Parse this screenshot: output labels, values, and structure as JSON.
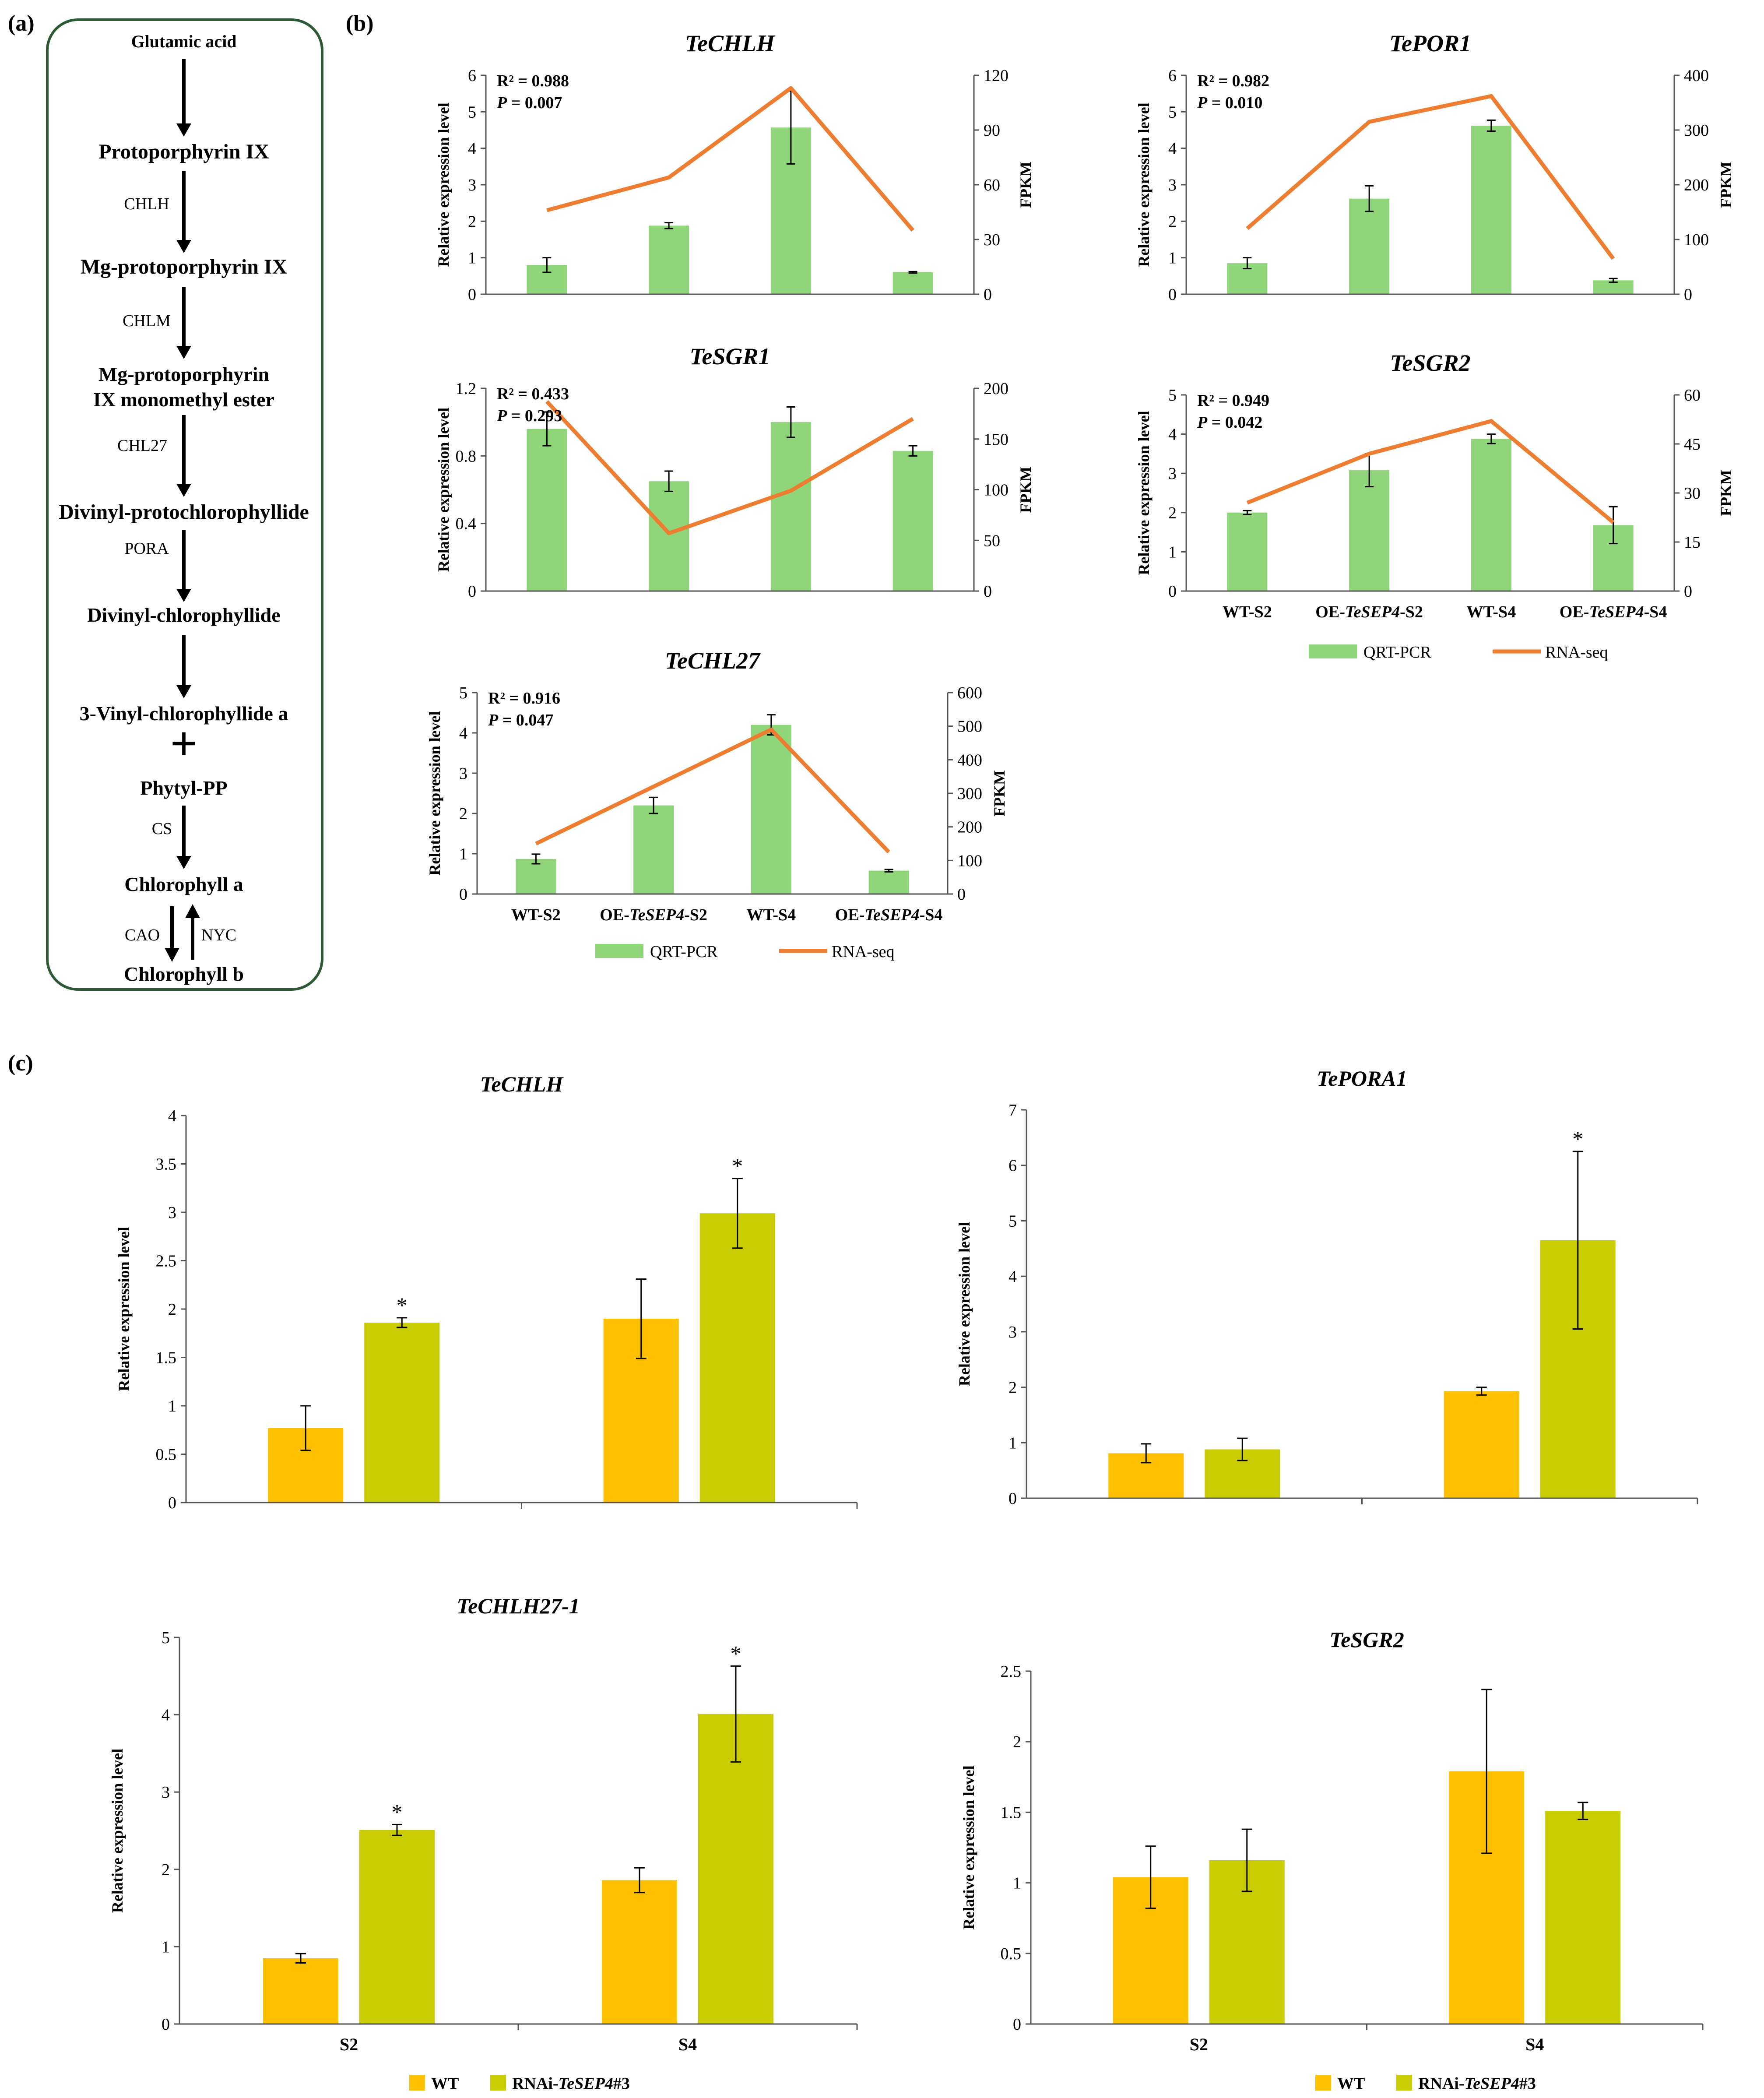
{
  "panel_labels": {
    "a": "(a)",
    "b": "(b)",
    "c": "(c)"
  },
  "pathway": {
    "steps": [
      "Glutamic acid",
      "Protoporphyrin IX",
      "Mg-protoporphyrin IX",
      "Mg-protoporphyrin",
      "IX monomethyl ester",
      "Divinyl-protochlorophyllide",
      "Divinyl-chlorophyllide",
      "3-Vinyl-chlorophyllide a",
      "Phytyl-PP",
      "Chlorophyll a",
      "Chlorophyll b"
    ],
    "enzymes": [
      "CHLH",
      "CHLM",
      "CHL27",
      "PORA",
      "CS",
      "CAO",
      "NYC"
    ],
    "plus_sign": "+"
  },
  "legend_b": {
    "qrt": "QRT-PCR",
    "rnaseq": "RNA-seq"
  },
  "legend_c": {
    "wt": "WT",
    "rnai_prefix": "RNAi-",
    "rnai_gene": "TeSEP4",
    "rnai_suffix": "#3"
  },
  "axis_labels": {
    "relative": "Relative expression level",
    "fpkm": "FPKM"
  },
  "colors": {
    "qrt_bar": "#8fd67a",
    "rnaseq_line": "#ed7d31",
    "wt_bar": "#ffc000",
    "rnai_bar": "#c9cc00",
    "pathway_border": "#2d5a36"
  },
  "chart_data": [
    {
      "id": "b-chlh",
      "type": "bar+line",
      "title": "TeCHLH",
      "categories": [
        "WT-S2",
        "OE-TeSEP4-S2",
        "WT-S4",
        "OE-TeSEP4-S4"
      ],
      "series": [
        {
          "name": "QRT-PCR",
          "axis": "left",
          "values": [
            0.8,
            1.88,
            4.57,
            0.6
          ],
          "errors": [
            0.2,
            0.08,
            1.0,
            0.02
          ]
        },
        {
          "name": "RNA-seq",
          "axis": "right",
          "values": [
            46,
            64,
            113,
            35
          ]
        }
      ],
      "ylim": [
        0,
        6
      ],
      "yticks": [
        0,
        1,
        2,
        3,
        4,
        5,
        6
      ],
      "y2lim": [
        0,
        120
      ],
      "y2ticks": [
        0,
        30,
        60,
        90,
        120
      ],
      "ylabel": "Relative expression level",
      "y2label": "FPKM",
      "stats": [
        "R² = 0.988",
        "P = 0.007"
      ],
      "xticklabels_visible": false
    },
    {
      "id": "b-por1",
      "type": "bar+line",
      "title": "TePOR1",
      "categories": [
        "WT-S2",
        "OE-TeSEP4-S2",
        "WT-S4",
        "OE-TeSEP4-S4"
      ],
      "series": [
        {
          "name": "QRT-PCR",
          "axis": "left",
          "values": [
            0.85,
            2.62,
            4.62,
            0.38
          ],
          "errors": [
            0.15,
            0.35,
            0.15,
            0.05
          ]
        },
        {
          "name": "RNA-seq",
          "axis": "right",
          "values": [
            120,
            315,
            362,
            65
          ]
        }
      ],
      "ylim": [
        0,
        6
      ],
      "yticks": [
        0,
        1,
        2,
        3,
        4,
        5,
        6
      ],
      "y2lim": [
        0,
        400
      ],
      "y2ticks": [
        0,
        100,
        200,
        300,
        400
      ],
      "ylabel": "Relative expression level",
      "y2label": "FPKM",
      "stats": [
        "R² = 0.982",
        "P = 0.010"
      ],
      "xticklabels_visible": false
    },
    {
      "id": "b-sgr1",
      "type": "bar+line",
      "title": "TeSGR1",
      "categories": [
        "WT-S2",
        "OE-TeSEP4-S2",
        "WT-S4",
        "OE-TeSEP4-S4"
      ],
      "series": [
        {
          "name": "QRT-PCR",
          "axis": "left",
          "values": [
            0.96,
            0.65,
            1.0,
            0.83
          ],
          "errors": [
            0.1,
            0.06,
            0.09,
            0.03
          ]
        },
        {
          "name": "RNA-seq",
          "axis": "right",
          "values": [
            187,
            57,
            99,
            170
          ]
        }
      ],
      "ylim": [
        0,
        1.2
      ],
      "yticks": [
        0,
        0.4,
        0.8,
        1.2
      ],
      "y2lim": [
        0,
        200
      ],
      "y2ticks": [
        0,
        50,
        100,
        150,
        200
      ],
      "ylabel": "Relative expression level",
      "y2label": "FPKM",
      "stats": [
        "R² = 0.433",
        "P = 0.293"
      ],
      "xticklabels_visible": false
    },
    {
      "id": "b-sgr2",
      "type": "bar+line",
      "title": "TeSGR2",
      "categories": [
        "WT-S2",
        "OE-TeSEP4-S2",
        "WT-S4",
        "OE-TeSEP4-S4"
      ],
      "series": [
        {
          "name": "QRT-PCR",
          "axis": "left",
          "values": [
            2.0,
            3.08,
            3.88,
            1.68
          ],
          "errors": [
            0.05,
            0.42,
            0.12,
            0.47
          ]
        },
        {
          "name": "RNA-seq",
          "axis": "right",
          "values": [
            27,
            42,
            52,
            21
          ]
        }
      ],
      "ylim": [
        0,
        5
      ],
      "yticks": [
        0,
        1,
        2,
        3,
        4,
        5
      ],
      "y2lim": [
        0,
        60
      ],
      "y2ticks": [
        0,
        15,
        30,
        45,
        60
      ],
      "ylabel": "Relative expression level",
      "y2label": "FPKM",
      "stats": [
        "R² = 0.949",
        "P = 0.042"
      ],
      "xticklabels_visible": true
    },
    {
      "id": "b-chl27",
      "type": "bar+line",
      "title": "TeCHL27",
      "categories": [
        "WT-S2",
        "OE-TeSEP4-S2",
        "WT-S4",
        "OE-TeSEP4-S4"
      ],
      "series": [
        {
          "name": "QRT-PCR",
          "axis": "left",
          "values": [
            0.87,
            2.2,
            4.2,
            0.58
          ],
          "errors": [
            0.12,
            0.2,
            0.25,
            0.03
          ]
        },
        {
          "name": "RNA-seq",
          "axis": "right",
          "values": [
            150,
            320,
            490,
            125
          ]
        }
      ],
      "ylim": [
        0,
        5
      ],
      "yticks": [
        0,
        1,
        2,
        3,
        4,
        5
      ],
      "y2lim": [
        0,
        600
      ],
      "y2ticks": [
        0,
        100,
        200,
        300,
        400,
        500,
        600
      ],
      "ylabel": "Relative expression level",
      "y2label": "FPKM",
      "stats": [
        "R² = 0.916",
        "P = 0.047"
      ],
      "xticklabels_visible": true
    },
    {
      "id": "c-chlh",
      "type": "bar",
      "title": "TeCHLH",
      "categories": [
        "S2",
        "S4"
      ],
      "series": [
        {
          "name": "WT",
          "values": [
            0.77,
            1.9
          ],
          "errors": [
            0.23,
            0.41
          ],
          "sig": [
            false,
            false
          ]
        },
        {
          "name": "RNAi-TeSEP4#3",
          "values": [
            1.86,
            2.99
          ],
          "errors": [
            0.05,
            0.36
          ],
          "sig": [
            true,
            true
          ]
        }
      ],
      "ylim": [
        0,
        4
      ],
      "yticks": [
        0,
        0.5,
        1,
        1.5,
        2,
        2.5,
        3,
        3.5,
        4
      ],
      "ylabel": "Relative expression level",
      "xticklabels_visible": false
    },
    {
      "id": "c-pora1",
      "type": "bar",
      "title": "TePORA1",
      "categories": [
        "S2",
        "S4"
      ],
      "series": [
        {
          "name": "WT",
          "values": [
            0.81,
            1.93
          ],
          "errors": [
            0.17,
            0.07
          ],
          "sig": [
            false,
            false
          ]
        },
        {
          "name": "RNAi-TeSEP4#3",
          "values": [
            0.88,
            4.65
          ],
          "errors": [
            0.2,
            1.6
          ],
          "sig": [
            false,
            true
          ]
        }
      ],
      "ylim": [
        0,
        7
      ],
      "yticks": [
        0,
        1,
        2,
        3,
        4,
        5,
        6,
        7
      ],
      "ylabel": "Relative expression level",
      "xticklabels_visible": false
    },
    {
      "id": "c-chlh27",
      "type": "bar",
      "title": "TeCHLH27-1",
      "categories": [
        "S2",
        "S4"
      ],
      "series": [
        {
          "name": "WT",
          "values": [
            0.85,
            1.86
          ],
          "errors": [
            0.06,
            0.16
          ],
          "sig": [
            false,
            false
          ]
        },
        {
          "name": "RNAi-TeSEP4#3",
          "values": [
            2.51,
            4.01
          ],
          "errors": [
            0.07,
            0.62
          ],
          "sig": [
            true,
            true
          ]
        }
      ],
      "ylim": [
        0,
        5
      ],
      "yticks": [
        0,
        1,
        2,
        3,
        4,
        5
      ],
      "ylabel": "Relative expression level",
      "xticklabels_visible": true
    },
    {
      "id": "c-sgr2",
      "type": "bar",
      "title": "TeSGR2",
      "categories": [
        "S2",
        "S4"
      ],
      "series": [
        {
          "name": "WT",
          "values": [
            1.04,
            1.79
          ],
          "errors": [
            0.22,
            0.58
          ],
          "sig": [
            false,
            false
          ]
        },
        {
          "name": "RNAi-TeSEP4#3",
          "values": [
            1.16,
            1.51
          ],
          "errors": [
            0.22,
            0.06
          ],
          "sig": [
            false,
            false
          ]
        }
      ],
      "ylim": [
        0,
        2.5
      ],
      "yticks": [
        0,
        0.5,
        1,
        1.5,
        2,
        2.5
      ],
      "ylabel": "Relative expression level",
      "xticklabels_visible": true
    }
  ]
}
